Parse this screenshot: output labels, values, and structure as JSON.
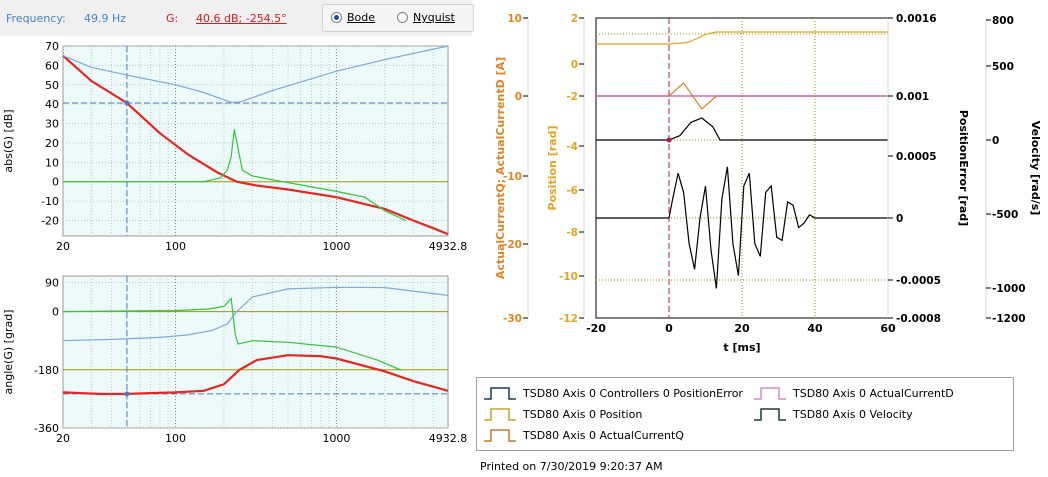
{
  "header": {
    "frequency_label": "Frequency:",
    "frequency_value": "49.9 Hz",
    "g_label": "G:",
    "g_value": "40.6 dB; -254.5°",
    "mode_options": [
      {
        "label": "Bode",
        "selected": true
      },
      {
        "label": "Nyquist",
        "selected": false
      }
    ]
  },
  "colors": {
    "red": "#e8251f",
    "blue": "#7da7dd",
    "green": "#33c33d",
    "olive": "#999900",
    "orange": "#e28322",
    "gold": "#e2a51f",
    "magenta": "#c94dab",
    "black": "#000000",
    "plot_bg": "#eefafa"
  },
  "chart_data": [
    {
      "type": "line",
      "xscale": "log",
      "xlim": [
        20,
        4932.8
      ],
      "ylim": [
        -28,
        70
      ],
      "ylabel": "abs(G) [dB]",
      "xticks": [
        "20",
        "100",
        "1000",
        "4932.8"
      ],
      "yticks": [
        "70",
        "60",
        "50",
        "40",
        "30",
        "20",
        "10",
        "0",
        "-10",
        "-20"
      ],
      "cursor": {
        "x": 49.9,
        "y": 40.6
      },
      "series": [
        {
          "color": "red",
          "x": [
            20,
            30,
            49.9,
            80,
            120,
            180,
            240,
            320,
            500,
            1000,
            2000,
            3000,
            4000,
            4932.8
          ],
          "y": [
            65,
            52,
            40.6,
            25,
            14,
            5,
            0,
            -2,
            -4,
            -8,
            -14,
            -20,
            -24,
            -27
          ]
        },
        {
          "color": "blue",
          "x": [
            20,
            30,
            49.9,
            100,
            150,
            220,
            250,
            400,
            1000,
            2000,
            4932.8
          ],
          "y": [
            65,
            59,
            55,
            50,
            46,
            41,
            41,
            47,
            57,
            63,
            70
          ]
        },
        {
          "color": "green",
          "x": [
            20,
            100,
            150,
            190,
            210,
            222,
            232,
            260,
            300,
            400,
            1000,
            1500,
            2000,
            2700
          ],
          "y": [
            0,
            0,
            0,
            2,
            6,
            13,
            27,
            6,
            3,
            1,
            -5,
            -8,
            -15,
            -20
          ]
        }
      ]
    },
    {
      "type": "line",
      "xscale": "log",
      "xlim": [
        20,
        4932.8
      ],
      "ylim": [
        -360,
        110
      ],
      "ylabel": "angle(G) [grad]",
      "xticks": [
        "20",
        "100",
        "1000",
        "4932.8"
      ],
      "yticks": [
        "90",
        "0",
        "-180",
        "-360"
      ],
      "cursor": {
        "x": 49.9,
        "y": -254.5
      },
      "series": [
        {
          "color": "blue",
          "x": [
            20,
            40,
            80,
            120,
            170,
            210,
            235,
            300,
            500,
            1000,
            2000,
            4932.8
          ],
          "y": [
            -90,
            -86,
            -80,
            -72,
            -58,
            -38,
            -5,
            45,
            70,
            75,
            74,
            50
          ]
        },
        {
          "color": "green",
          "x": [
            20,
            100,
            160,
            200,
            222,
            235,
            245,
            300,
            500,
            1000,
            1800,
            2500
          ],
          "y": [
            0,
            3,
            8,
            16,
            40,
            -70,
            -100,
            -90,
            -95,
            -110,
            -150,
            -180
          ]
        },
        {
          "color": "red",
          "x": [
            20,
            35,
            49.9,
            70,
            100,
            150,
            200,
            250,
            320,
            500,
            800,
            1000,
            2000,
            3000,
            4932.8
          ],
          "y": [
            -250,
            -255,
            -254.5,
            -252,
            -250,
            -245,
            -225,
            -180,
            -150,
            -135,
            -138,
            -145,
            -185,
            -215,
            -245
          ]
        }
      ]
    },
    {
      "type": "line",
      "xlim": [
        -20,
        60
      ],
      "xlabel": "t [ms]",
      "xticks": [
        "-20",
        "0",
        "20",
        "40",
        "60"
      ],
      "axes": [
        {
          "side": "left-outer",
          "label": "ActualCurrentQ; ActualCurrentD [A]",
          "color": "orange",
          "ticks": [
            "10",
            "0",
            "-10",
            "-20",
            "-30"
          ]
        },
        {
          "side": "left-inner",
          "label": "Position [rad]",
          "color": "gold",
          "ticks": [
            "2",
            "0",
            "-2",
            "-4",
            "-6",
            "-8",
            "-10",
            "-12"
          ]
        },
        {
          "side": "right-inner",
          "label": "PositionError [rad]",
          "color": "black",
          "ticks": [
            "0.0016",
            "0.001",
            "0.0005",
            "0",
            "-0.0005",
            "-0.0008"
          ]
        },
        {
          "side": "right-outer",
          "label": "Velocity [rad/s]",
          "color": "black",
          "ticks": [
            "800",
            "500",
            "0",
            "-500",
            "-1000",
            "-1200"
          ]
        }
      ],
      "series": [
        {
          "name": "TSD80 Axis 0 Position",
          "color": "gold",
          "x": [
            -20,
            0,
            5,
            8,
            10,
            13,
            60
          ],
          "y": [
            0,
            0,
            0.2,
            0.8,
            1.3,
            1.6,
            1.6
          ]
        },
        {
          "name": "TSD80 Axis 0 ActualCurrentQ",
          "color": "orange",
          "x": [
            -20,
            0,
            4,
            9,
            13,
            60
          ],
          "y": [
            0,
            0,
            3,
            -3,
            0,
            0
          ]
        },
        {
          "name": "TSD80 Axis 0 ActualCurrentD",
          "color": "magenta",
          "x": [
            -20,
            60
          ],
          "y": [
            0,
            0
          ]
        },
        {
          "name": "TSD80 Axis 0 Controllers 0 PositionError",
          "color": "black",
          "x": [
            -20,
            0,
            3,
            6,
            9,
            12,
            14,
            60
          ],
          "y": [
            0,
            0,
            0.0001,
            0.0004,
            0.0005,
            0.0003,
            0,
            0
          ]
        },
        {
          "name": "TSD80 Axis 0 Velocity",
          "color": "black",
          "x": [
            -20,
            0,
            1,
            2.5,
            4,
            5.5,
            7,
            8.5,
            10,
            11.5,
            13,
            14.5,
            16,
            17.5,
            19,
            20.5,
            22,
            23.5,
            25,
            26.5,
            28,
            29.5,
            31,
            32.5,
            34,
            35.5,
            37,
            38.5,
            40,
            45,
            60
          ],
          "y": [
            0,
            0,
            300,
            700,
            400,
            -400,
            -800,
            0,
            500,
            -500,
            -1100,
            300,
            800,
            -400,
            -900,
            500,
            700,
            -400,
            -600,
            400,
            500,
            -300,
            -350,
            250,
            200,
            -150,
            -80,
            50,
            0,
            0,
            0
          ]
        }
      ]
    }
  ],
  "legend": [
    {
      "label": "TSD80 Axis 0 Controllers 0 PositionError",
      "color": "#1a3a5a"
    },
    {
      "label": "TSD80 Axis 0 ActualCurrentD",
      "color": "#d38cc3"
    },
    {
      "label": "TSD80 Axis 0 Position",
      "color": "#c9a227"
    },
    {
      "label": "TSD80 Axis 0 Velocity",
      "color": "#1a3a3a"
    },
    {
      "label": "TSD80 Axis 0 ActualCurrentQ",
      "color": "#c27a2c"
    }
  ],
  "footer": {
    "printed": "Printed on 7/30/2019 9:20:37 AM"
  }
}
